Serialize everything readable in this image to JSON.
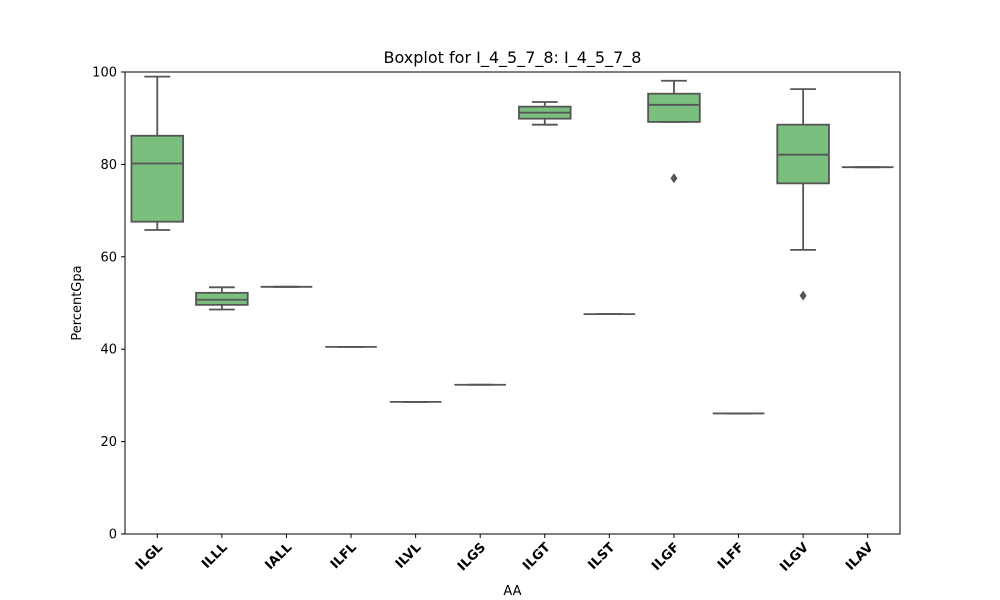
{
  "chart_data": {
    "type": "box",
    "title": "Boxplot for I_4_5_7_8: I_4_5_7_8",
    "xlabel": "AA",
    "ylabel": "PercentGpa",
    "ylim": [
      0,
      100
    ],
    "yticks": [
      0,
      20,
      40,
      60,
      80,
      100
    ],
    "categories": [
      "ILGL",
      "ILLL",
      "IALL",
      "ILFL",
      "ILVL",
      "ILGS",
      "ILGT",
      "ILST",
      "ILGF",
      "ILFF",
      "ILGV",
      "ILAV"
    ],
    "boxes": [
      {
        "whisker_low": 65.8,
        "q1": 67.6,
        "median": 80.2,
        "q3": 86.2,
        "whisker_high": 99.0,
        "outliers": []
      },
      {
        "whisker_low": 48.6,
        "q1": 49.6,
        "median": 50.7,
        "q3": 52.2,
        "whisker_high": 53.4,
        "outliers": []
      },
      {
        "whisker_low": 53.5,
        "q1": 53.5,
        "median": 53.5,
        "q3": 53.5,
        "whisker_high": 53.5,
        "outliers": []
      },
      {
        "whisker_low": 40.5,
        "q1": 40.5,
        "median": 40.5,
        "q3": 40.5,
        "whisker_high": 40.5,
        "outliers": []
      },
      {
        "whisker_low": 28.6,
        "q1": 28.6,
        "median": 28.6,
        "q3": 28.6,
        "whisker_high": 28.6,
        "outliers": []
      },
      {
        "whisker_low": 32.3,
        "q1": 32.3,
        "median": 32.3,
        "q3": 32.3,
        "whisker_high": 32.3,
        "outliers": []
      },
      {
        "whisker_low": 88.6,
        "q1": 89.9,
        "median": 91.2,
        "q3": 92.5,
        "whisker_high": 93.5,
        "outliers": []
      },
      {
        "whisker_low": 47.6,
        "q1": 47.6,
        "median": 47.6,
        "q3": 47.6,
        "whisker_high": 47.6,
        "outliers": []
      },
      {
        "whisker_low": 89.2,
        "q1": 89.2,
        "median": 92.9,
        "q3": 95.3,
        "whisker_high": 98.1,
        "outliers": [
          77.0
        ]
      },
      {
        "whisker_low": 26.1,
        "q1": 26.1,
        "median": 26.1,
        "q3": 26.1,
        "whisker_high": 26.1,
        "outliers": []
      },
      {
        "whisker_low": 61.5,
        "q1": 75.9,
        "median": 82.1,
        "q3": 88.6,
        "whisker_high": 96.3,
        "outliers": [
          51.6
        ]
      },
      {
        "whisker_low": 79.4,
        "q1": 79.4,
        "median": 79.4,
        "q3": 79.4,
        "whisker_high": 79.4,
        "outliers": []
      }
    ],
    "colors": {
      "box_fill": "#7bbf7f",
      "line": "#555555",
      "axes": "#000000"
    },
    "grid": false,
    "legend": "none"
  }
}
